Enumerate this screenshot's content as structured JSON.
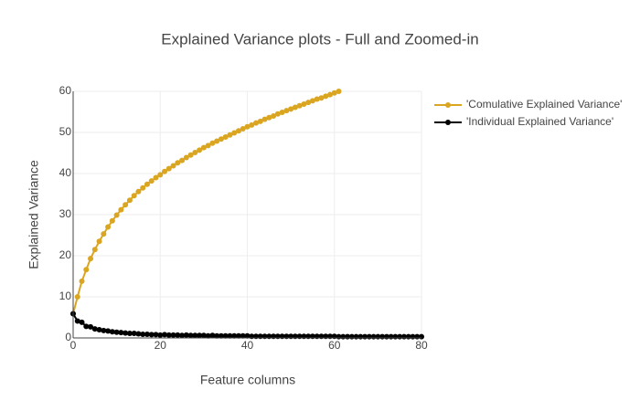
{
  "chart_data": {
    "type": "line",
    "title": "Explained Variance plots - Full and Zoomed-in",
    "x_label": "Feature columns",
    "y_label": "Explained Variance",
    "xlim": [
      0,
      80
    ],
    "ylim": [
      0,
      60
    ],
    "xticks": [
      0,
      20,
      40,
      60,
      80
    ],
    "yticks": [
      0,
      10,
      20,
      30,
      40,
      50,
      60
    ],
    "grid": true,
    "legend": "right",
    "series": [
      {
        "name": "'Comulative Explained Variance'",
        "color": "#daa520",
        "x": [
          0,
          1,
          2,
          3,
          4,
          5,
          6,
          7,
          8,
          9,
          10,
          11,
          12,
          13,
          14,
          15,
          16,
          17,
          18,
          19,
          20,
          21,
          22,
          23,
          24,
          25,
          26,
          27,
          28,
          29,
          30,
          31,
          32,
          33,
          34,
          35,
          36,
          37,
          38,
          39,
          40,
          41,
          42,
          43,
          44,
          45,
          46,
          47,
          48,
          49,
          50,
          51,
          52,
          53,
          54,
          55,
          56,
          57,
          58,
          59,
          60,
          61
        ],
        "values": [
          5.9,
          10.0,
          13.8,
          16.6,
          19.3,
          21.5,
          23.5,
          25.3,
          27.0,
          28.5,
          29.9,
          31.2,
          32.4,
          33.5,
          34.6,
          35.6,
          36.5,
          37.4,
          38.2,
          39.0,
          39.7,
          40.5,
          41.2,
          41.9,
          42.6,
          43.2,
          43.9,
          44.5,
          45.1,
          45.7,
          46.3,
          46.8,
          47.4,
          47.9,
          48.4,
          48.9,
          49.4,
          49.9,
          50.4,
          50.9,
          51.4,
          51.8,
          52.3,
          52.7,
          53.2,
          53.6,
          54.0,
          54.5,
          54.9,
          55.3,
          55.7,
          56.1,
          56.5,
          56.9,
          57.3,
          57.7,
          58.1,
          58.4,
          58.8,
          59.2,
          59.6,
          60.0
        ]
      },
      {
        "name": "'Individual Explained Variance'",
        "color": "#000000",
        "x": [
          0,
          1,
          2,
          3,
          4,
          5,
          6,
          7,
          8,
          9,
          10,
          11,
          12,
          13,
          14,
          15,
          16,
          17,
          18,
          19,
          20,
          21,
          22,
          23,
          24,
          25,
          26,
          27,
          28,
          29,
          30,
          31,
          32,
          33,
          34,
          35,
          36,
          37,
          38,
          39,
          40,
          41,
          42,
          43,
          44,
          45,
          46,
          47,
          48,
          49,
          50,
          51,
          52,
          53,
          54,
          55,
          56,
          57,
          58,
          59,
          60,
          61,
          62,
          63,
          64,
          65,
          66,
          67,
          68,
          69,
          70,
          71,
          72,
          73,
          74,
          75,
          76,
          77,
          78,
          79,
          80
        ],
        "values": [
          5.9,
          4.1,
          3.8,
          2.8,
          2.7,
          2.2,
          2.0,
          1.8,
          1.7,
          1.5,
          1.4,
          1.3,
          1.2,
          1.1,
          1.1,
          1.0,
          0.9,
          0.9,
          0.8,
          0.8,
          0.7,
          0.8,
          0.7,
          0.7,
          0.7,
          0.6,
          0.7,
          0.6,
          0.6,
          0.6,
          0.6,
          0.5,
          0.6,
          0.5,
          0.5,
          0.5,
          0.5,
          0.5,
          0.5,
          0.5,
          0.5,
          0.4,
          0.4,
          0.4,
          0.4,
          0.4,
          0.4,
          0.4,
          0.4,
          0.4,
          0.4,
          0.4,
          0.4,
          0.4,
          0.4,
          0.4,
          0.4,
          0.4,
          0.4,
          0.4,
          0.4,
          0.3,
          0.3,
          0.3,
          0.3,
          0.3,
          0.3,
          0.3,
          0.3,
          0.3,
          0.3,
          0.3,
          0.3,
          0.3,
          0.3,
          0.3,
          0.3,
          0.3,
          0.3,
          0.3,
          0.3
        ]
      }
    ]
  }
}
